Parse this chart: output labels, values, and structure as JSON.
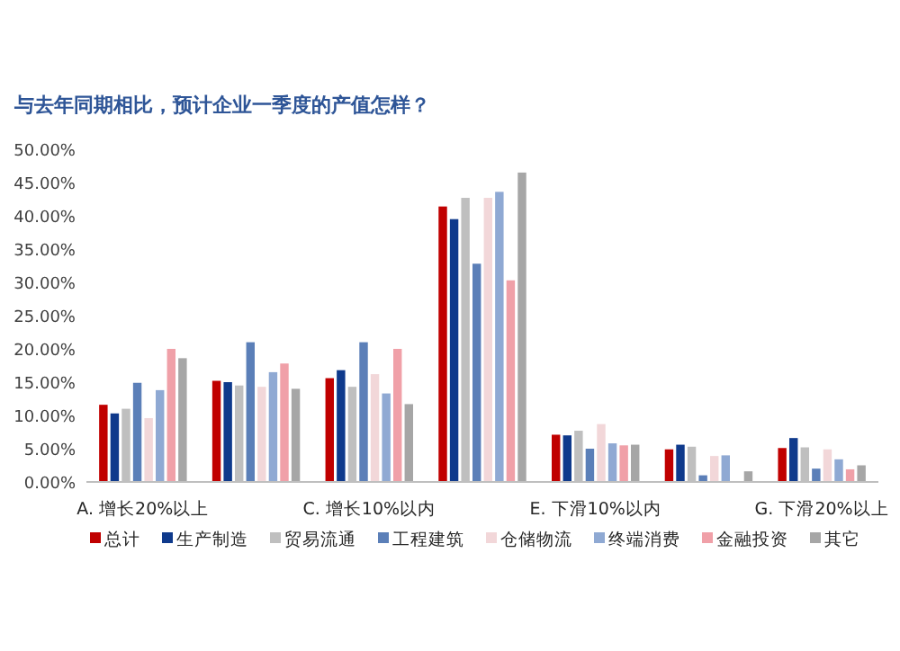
{
  "chart_data": {
    "type": "bar",
    "title": "与去年同期相比，预计企业一季度的产值怎样？",
    "categories": [
      "A. 增长20%以上",
      null,
      "C. 增长10%以内",
      null,
      "E. 下滑10%以内",
      null,
      "G. 下滑20%以上"
    ],
    "series": [
      {
        "name": "总计",
        "color": "#c00000",
        "values": [
          11.6,
          15.2,
          15.6,
          41.4,
          7.1,
          4.9,
          5.1
        ]
      },
      {
        "name": "生产制造",
        "color": "#0f3a8c",
        "values": [
          10.3,
          15,
          16.8,
          39.5,
          7,
          5.6,
          6.6
        ]
      },
      {
        "name": "贸易流通",
        "color": "#bfbfbf",
        "values": [
          11,
          14.5,
          14.3,
          42.7,
          7.7,
          5.3,
          5.2
        ]
      },
      {
        "name": "工程建筑",
        "color": "#5b7fb8",
        "values": [
          14.9,
          21,
          21,
          32.8,
          5,
          1,
          2
        ]
      },
      {
        "name": "仓储物流",
        "color": "#f2d7d9",
        "values": [
          9.6,
          14.3,
          16.2,
          42.7,
          8.7,
          3.9,
          4.9
        ]
      },
      {
        "name": "终端消费",
        "color": "#8fa9d3",
        "values": [
          13.8,
          16.5,
          13.3,
          43.6,
          5.8,
          4,
          3.4
        ]
      },
      {
        "name": "金融投资",
        "color": "#f0a0a8",
        "values": [
          20,
          17.8,
          20,
          30.3,
          5.5,
          0,
          1.9
        ]
      },
      {
        "name": "其它",
        "color": "#a6a6a6",
        "values": [
          18.6,
          14,
          11.7,
          46.5,
          5.6,
          1.6,
          2.5
        ]
      }
    ],
    "ylim": [
      0,
      50
    ],
    "yticks": [
      {
        "value": 0,
        "label": "0.00%"
      },
      {
        "value": 5,
        "label": "5.00%"
      },
      {
        "value": 10,
        "label": "10.00%"
      },
      {
        "value": 15,
        "label": "15.00%"
      },
      {
        "value": 20,
        "label": "20.00%"
      },
      {
        "value": 25,
        "label": "25.00%"
      },
      {
        "value": 30,
        "label": "30.00%"
      },
      {
        "value": 35,
        "label": "35.00%"
      },
      {
        "value": 40,
        "label": "40.00%"
      },
      {
        "value": 45,
        "label": "45.00%"
      },
      {
        "value": 50,
        "label": "50.00%"
      }
    ],
    "grid": false,
    "legend": "bottom"
  }
}
